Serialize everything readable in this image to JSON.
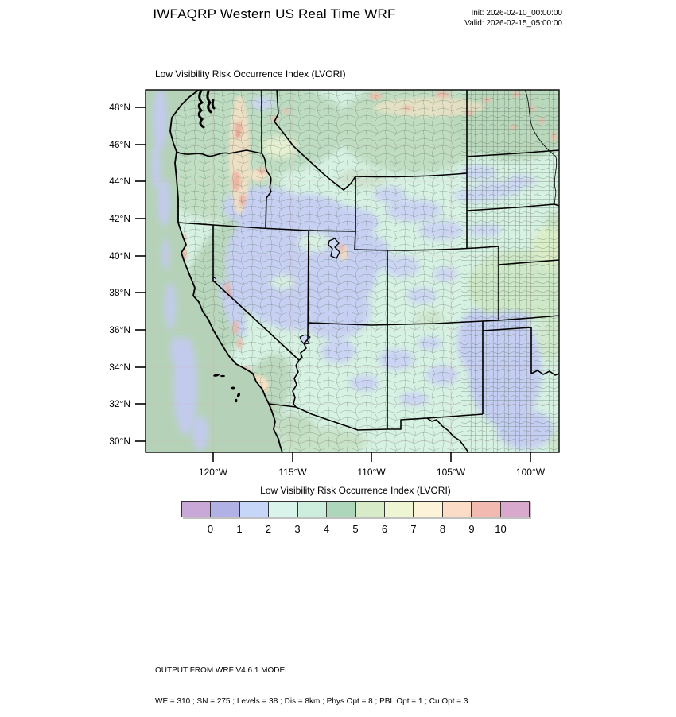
{
  "header": {
    "title": "IWFAQRP Western US Real Time WRF",
    "init_label": "Init: 2026-02-10_00:00:00",
    "valid_label": "Valid: 2026-02-15_05:00:00"
  },
  "map": {
    "subtitle": "Low Visibility Risk Occurrence Index   (LVORI)",
    "lat_tick_labels": [
      "48°N",
      "46°N",
      "44°N",
      "42°N",
      "40°N",
      "38°N",
      "36°N",
      "34°N",
      "32°N",
      "30°N"
    ],
    "lon_tick_labels": [
      "120°W",
      "115°W",
      "110°W",
      "105°W",
      "100°W"
    ]
  },
  "legend": {
    "title": "Low Visibility Risk Occurrence Index  (LVORI)",
    "variable": "LVORI",
    "tick_labels": [
      "0",
      "1",
      "2",
      "3",
      "4",
      "5",
      "6",
      "7",
      "8",
      "9",
      "10"
    ],
    "colors": [
      "#c9a8d8",
      "#b2b1e6",
      "#c6d6f8",
      "#d9f4ea",
      "#cdeedd",
      "#aed6bb",
      "#d7ebc8",
      "#eef5d2",
      "#fdf3d9",
      "#fbdcc6",
      "#f1b9b0",
      "#d9a9cd"
    ]
  },
  "footer": {
    "line1": "OUTPUT FROM WRF V4.6.1 MODEL",
    "line2": "WE = 310 ; SN = 275 ; Levels = 38 ; Dis = 8km ; Phys Opt = 8 ; PBL Opt = 1 ; Cu Opt = 3"
  },
  "colors": {
    "ocean": "#b5d2b8",
    "land_base": "#d7f1e3",
    "graticule": "#dfa4a4",
    "border": "#000000"
  }
}
